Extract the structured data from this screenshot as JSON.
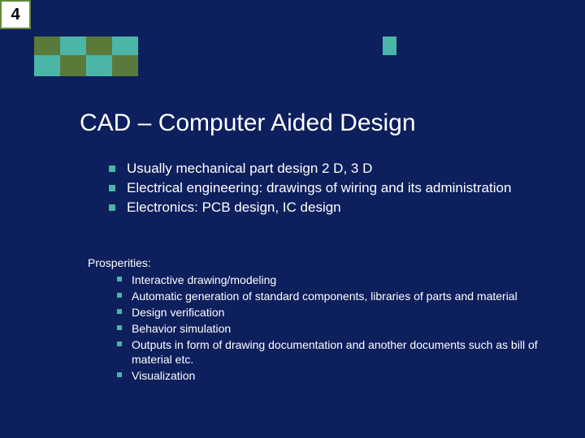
{
  "slide_number": "4",
  "decorations": {
    "top_row_colors": [
      "#5a7a3a",
      "#4bb5a8",
      "#5a7a3a",
      "#4bb5a8"
    ],
    "bottom_row_colors": [
      "#4bb5a8",
      "#5a7a3a",
      "#4bb5a8",
      "#5a7a3a"
    ],
    "side_box_color": "#4bb5a8"
  },
  "title": "CAD – Computer Aided Design",
  "main_bullets": [
    "Usually mechanical part design 2 D, 3 D",
    "Electrical engineering: drawings of wiring  and its administration",
    "Electronics: PCB design, IC design"
  ],
  "sub_heading": "Prosperities:",
  "sub_bullets": [
    "Interactive drawing/modeling",
    "Automatic generation of standard components, libraries of parts and material",
    "Design verification",
    "Behavior simulation",
    "Outputs in form of drawing documentation and another documents such as bill of material etc.",
    "Visualization"
  ],
  "colors": {
    "background": "#0d1f5c",
    "text": "#ffffff",
    "bullet": "#4bb5a8",
    "number_box_bg": "#ffffff",
    "number_box_border": "#5f8a3d"
  }
}
